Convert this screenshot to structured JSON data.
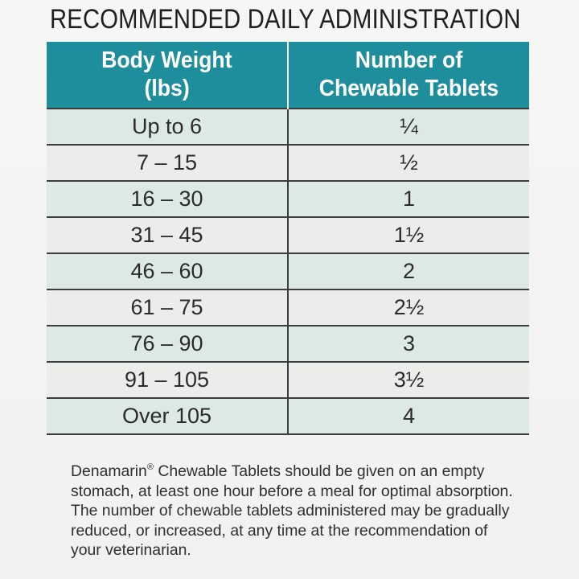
{
  "heading": "RECOMMENDED DAILY ADMINISTRATION",
  "table": {
    "headers": [
      {
        "line1": "Body Weight",
        "line2": "(lbs)"
      },
      {
        "line1": "Number of",
        "line2": "Chewable Tablets"
      }
    ],
    "rows": [
      {
        "weight": "Up to 6",
        "tablets": "¼"
      },
      {
        "weight": "7 – 15",
        "tablets": "½"
      },
      {
        "weight": "16 – 30",
        "tablets": "1"
      },
      {
        "weight": "31 – 45",
        "tablets": "1½"
      },
      {
        "weight": "46 – 60",
        "tablets": "2"
      },
      {
        "weight": "61 – 75",
        "tablets": "2½"
      },
      {
        "weight": "76 – 90",
        "tablets": "3"
      },
      {
        "weight": "91 – 105",
        "tablets": "3½"
      },
      {
        "weight": "Over 105",
        "tablets": "4"
      }
    ]
  },
  "note": {
    "brand": "Denamarin",
    "registered_mark": "®",
    "text": " Chewable Tablets should be given on an empty stomach, at least one hour before a meal for optimal absorption. The number of chewable tablets administered may be gradually reduced, or increased, at any time at the recommendation of your veterinarian."
  },
  "colors": {
    "header_teal": "#1e8d9c",
    "row_tint": "#dde9e4",
    "row_plain": "#ececea"
  }
}
